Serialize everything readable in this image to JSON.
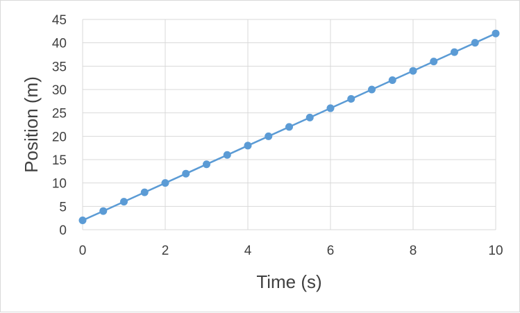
{
  "chart_data": {
    "type": "scatter",
    "title": "",
    "xlabel": "Time (s)",
    "ylabel": "Position (m)",
    "xlim": [
      0,
      10
    ],
    "ylim": [
      0,
      45
    ],
    "xticks": [
      0,
      2,
      4,
      6,
      8,
      10
    ],
    "yticks": [
      0,
      5,
      10,
      15,
      20,
      25,
      30,
      35,
      40,
      45
    ],
    "grid": true,
    "legend": "none",
    "series": [
      {
        "color": "#5b9bd5",
        "marker": "circle",
        "line": true,
        "x": [
          0,
          0.5,
          1,
          1.5,
          2,
          2.5,
          3,
          3.5,
          4,
          4.5,
          5,
          5.5,
          6,
          6.5,
          7,
          7.5,
          8,
          8.5,
          9,
          9.5,
          10
        ],
        "y": [
          2,
          4,
          6,
          8,
          10,
          12,
          14,
          16,
          18,
          20,
          22,
          24,
          26,
          28,
          30,
          32,
          34,
          36,
          38,
          40,
          42
        ]
      }
    ]
  }
}
